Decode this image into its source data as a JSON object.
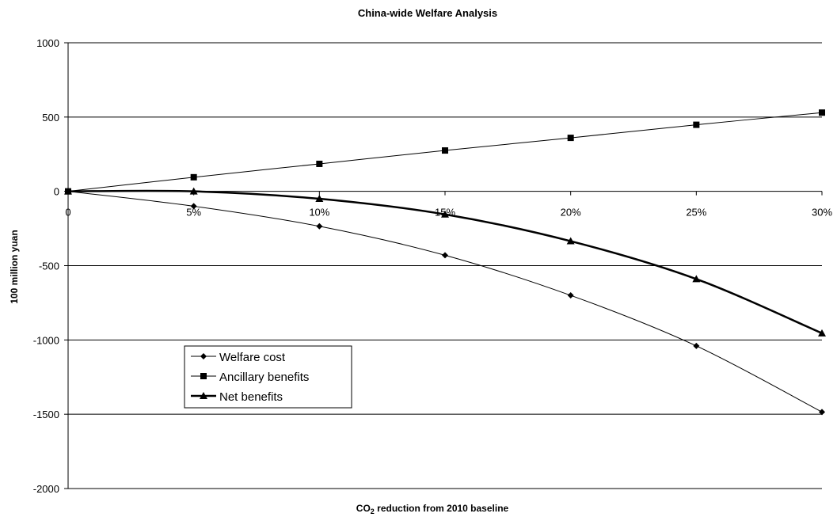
{
  "chart_data": {
    "type": "line",
    "title": "China-wide Welfare Analysis",
    "xlabel_main": "CO",
    "xlabel_sub": "2",
    "xlabel_rest": " reduction from 2010 baseline",
    "ylabel": "100 million yuan",
    "categories": [
      "0",
      "5%",
      "10%",
      "15%",
      "20%",
      "25%",
      "30%"
    ],
    "x": [
      0,
      5,
      10,
      15,
      20,
      25,
      30
    ],
    "ylim": [
      -2000,
      1000
    ],
    "yticks": [
      1000,
      500,
      0,
      -500,
      -1000,
      -1500,
      -2000
    ],
    "grid": true,
    "legend_placement": "center-left",
    "series": [
      {
        "name": "Welfare cost",
        "values": [
          0,
          -100,
          -235,
          -430,
          -700,
          -1040,
          -1485
        ],
        "marker": "diamond",
        "line_width": 1,
        "color": "#000000"
      },
      {
        "name": "Ancillary benefits",
        "values": [
          0,
          95,
          185,
          275,
          360,
          448,
          530
        ],
        "marker": "square",
        "line_width": 1,
        "color": "#000000"
      },
      {
        "name": "Net benefits",
        "values": [
          0,
          0,
          -50,
          -155,
          -335,
          -590,
          -955
        ],
        "marker": "triangle",
        "line_width": 2.5,
        "color": "#000000"
      }
    ]
  }
}
